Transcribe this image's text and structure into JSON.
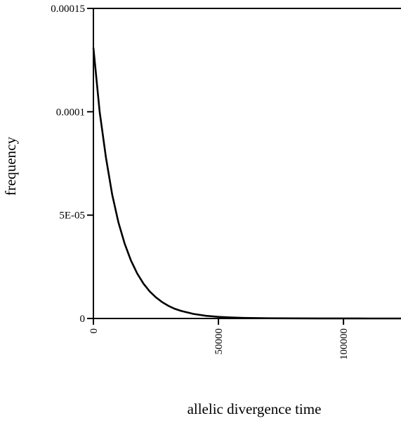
{
  "chart_data": {
    "type": "line",
    "title": "",
    "xlabel": "allelic divergence time",
    "ylabel": "frequency",
    "xlim": [
      0,
      123000
    ],
    "ylim": [
      0,
      0.00015
    ],
    "x_ticks": [
      {
        "value": 0,
        "label": "0"
      },
      {
        "value": 50000,
        "label": "50000"
      },
      {
        "value": 100000,
        "label": "100000"
      }
    ],
    "y_ticks": [
      {
        "value": 0,
        "label": "0"
      },
      {
        "value": 5e-05,
        "label": "5E-05"
      },
      {
        "value": 0.0001,
        "label": "0.0001"
      },
      {
        "value": 0.00015,
        "label": "0.00015"
      }
    ],
    "grid": false,
    "legend": "none",
    "line_color": "#000000",
    "series": [
      {
        "x": [
          0,
          2500,
          5000,
          7500,
          10000,
          12500,
          15000,
          17500,
          20000,
          22500,
          25000,
          27500,
          30000,
          32500,
          35000,
          40000,
          45000,
          50000,
          55000,
          60000,
          70000,
          80000,
          90000,
          100000,
          110000,
          123000
        ],
        "values": [
          0.000131,
          0.0001,
          7.8e-05,
          6e-05,
          4.65e-05,
          3.62e-05,
          2.81e-05,
          2.18e-05,
          1.69e-05,
          1.31e-05,
          1.02e-05,
          7.9e-06,
          6.1e-06,
          4.7e-06,
          3.7e-06,
          2.2e-06,
          1.3e-06,
          8e-07,
          5e-07,
          3e-07,
          1e-07,
          5e-08,
          2e-08,
          1e-08,
          0.0,
          0.0
        ]
      }
    ]
  }
}
